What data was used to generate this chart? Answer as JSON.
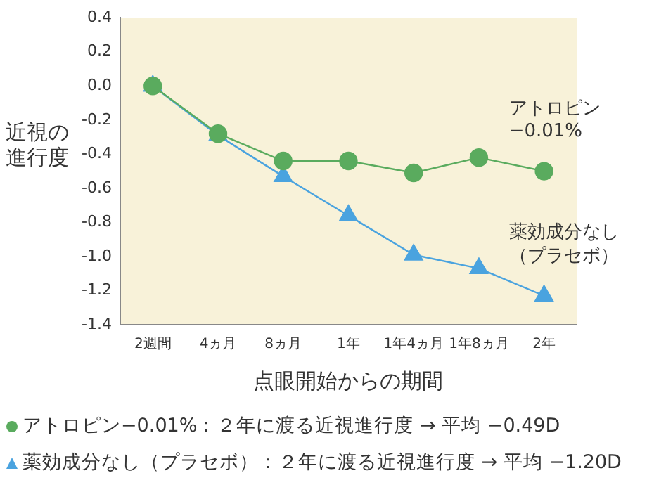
{
  "chart_data": {
    "type": "line",
    "xlabel": "点眼開始からの期間",
    "ylabel": "近視の進行度",
    "categories": [
      "2週間",
      "4ヵ月",
      "8ヵ月",
      "1年",
      "1年4ヵ月",
      "1年8ヵ月",
      "2年"
    ],
    "series": [
      {
        "name": "アトロピン−0.01%",
        "color": "#5aab5e",
        "marker": "circle",
        "values": [
          0,
          -0.28,
          -0.44,
          -0.44,
          -0.51,
          -0.42,
          -0.5
        ]
      },
      {
        "name": "薬効成分なし（プラセボ）",
        "color": "#4aa3df",
        "marker": "triangle",
        "values": [
          0,
          -0.29,
          -0.53,
          -0.76,
          -0.99,
          -1.07,
          -1.23
        ]
      }
    ],
    "ylim": [
      -1.4,
      0.4
    ],
    "yticks": [
      -1.4,
      -1.2,
      {
        "value": -1,
        "label": "-1.0"
      },
      -0.8,
      -0.6,
      -0.4,
      -0.2,
      {
        "value": 0,
        "label": "0.0"
      },
      0.2,
      0.4
    ],
    "grid": false,
    "legend": false,
    "annotations": [
      "アトロピン−0.01%：２年に渡る近視進行度 → 平均 −0.49D",
      "薬効成分なし（プラセボ）：２年に渡る近視進行度 → 平均 −1.20D"
    ]
  }
}
